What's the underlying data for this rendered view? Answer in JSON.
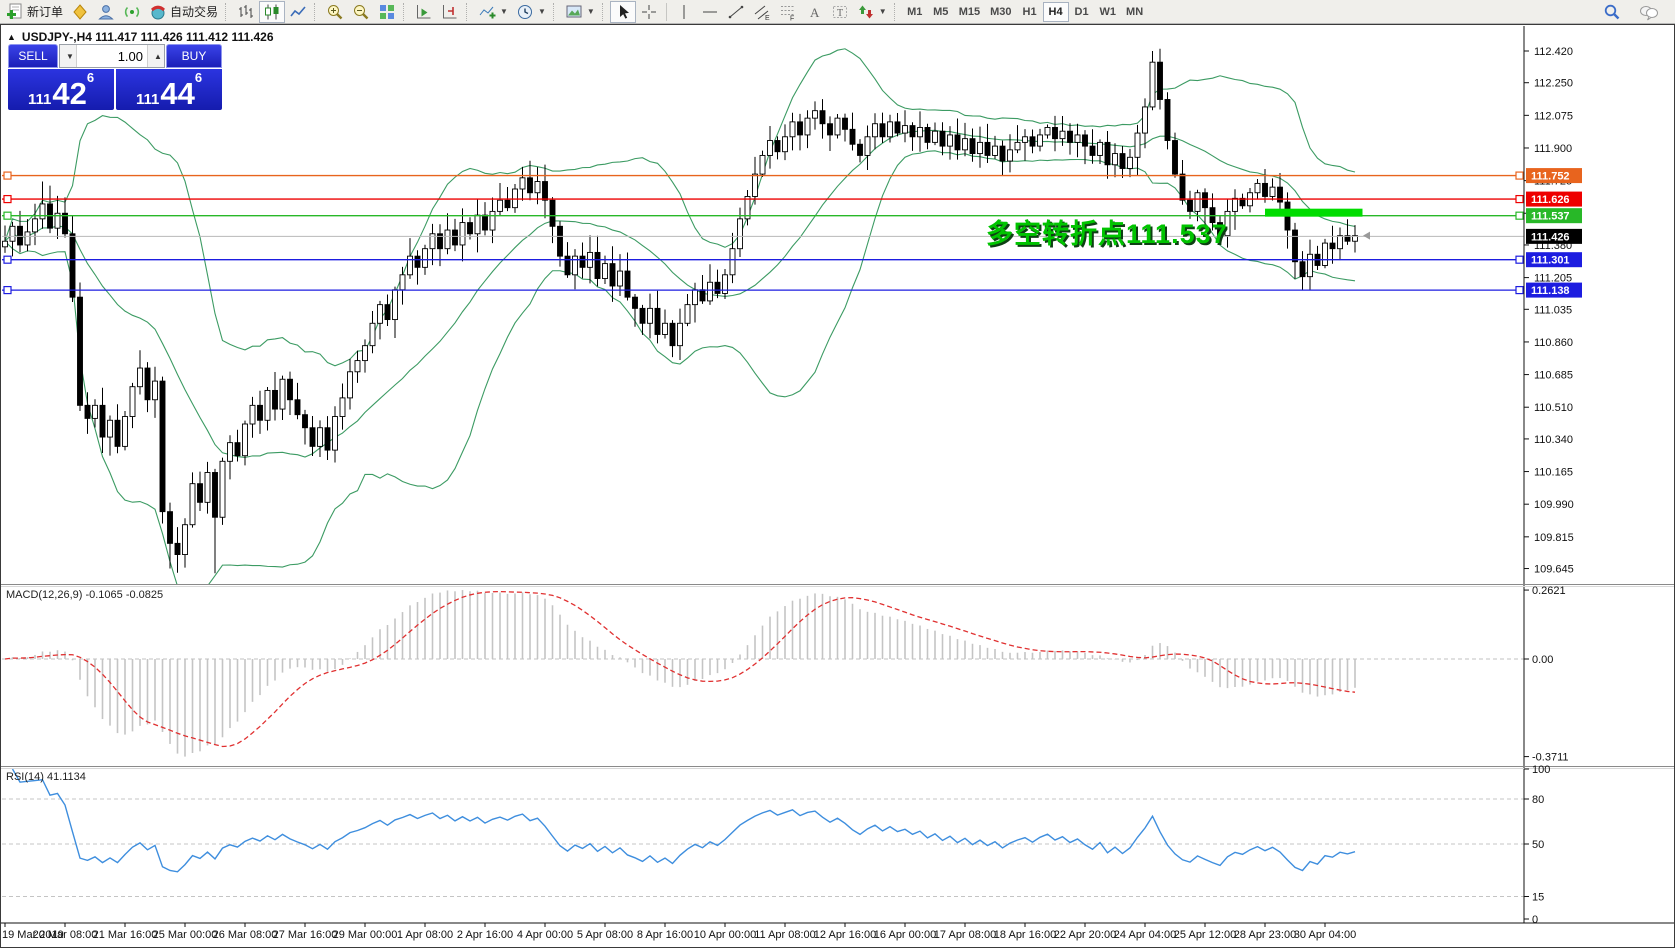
{
  "toolbar": {
    "new_order_label": "新订单",
    "auto_trading_label": "自动交易",
    "timeframes": [
      "M1",
      "M5",
      "M15",
      "M30",
      "H1",
      "H4",
      "D1",
      "W1",
      "MN"
    ],
    "active_timeframe": "H4",
    "icons": [
      "new-order-icon",
      "quotes-icon",
      "profile-icon",
      "signals-icon",
      "auto-trading-icon",
      "bar-chart-icon",
      "candlestick-icon",
      "line-chart-icon",
      "zoom-in-icon",
      "zoom-out-icon",
      "tile-windows-icon",
      "auto-scroll-icon",
      "chart-shift-icon",
      "indicators-icon",
      "periods-icon",
      "templates-icon",
      "cursor-icon",
      "crosshair-icon",
      "vertical-line-icon",
      "horizontal-line-icon",
      "trendline-icon",
      "channel-icon",
      "fibonacci-icon",
      "text-icon",
      "label-icon",
      "arrows-icon",
      "search-icon",
      "chat-icon"
    ]
  },
  "chart": {
    "symbol_info": "USDJPY-,H4  111.417 111.426 111.412 111.426",
    "annotation": "多空转折点111.537",
    "macd_label": "MACD(12,26,9) -0.1065 -0.0825",
    "rsi_label": "RSI(14) 41.1134"
  },
  "trade_panel": {
    "sell_label": "SELL",
    "buy_label": "BUY",
    "volume": "1.00",
    "prices": {
      "sell": {
        "prefix": "111",
        "big": "42",
        "sup": "6"
      },
      "buy": {
        "prefix": "111",
        "big": "44",
        "sup": "6"
      }
    }
  },
  "chart_data": {
    "type": "candlestick+indicators",
    "symbol": "USDJPY-",
    "timeframe": "H4",
    "current_quote": {
      "open": 111.417,
      "high": 111.426,
      "low": 111.412,
      "close": 111.426
    },
    "bid": 111.426,
    "ask": 111.446,
    "price_axis_ticks": [
      "112.420",
      "112.250",
      "112.075",
      "111.900",
      "111.725",
      "111.550",
      "111.380",
      "111.205",
      "111.035",
      "110.860",
      "110.685",
      "110.510",
      "110.340",
      "110.165",
      "109.990",
      "109.815",
      "109.645"
    ],
    "time_axis_labels": [
      "19 Mar 2019",
      "20 Mar 08:00",
      "21 Mar 16:00",
      "25 Mar 00:00",
      "26 Mar 08:00",
      "27 Mar 16:00",
      "29 Mar 00:00",
      "1 Apr 08:00",
      "2 Apr 16:00",
      "4 Apr 00:00",
      "5 Apr 08:00",
      "8 Apr 16:00",
      "10 Apr 00:00",
      "11 Apr 08:00",
      "12 Apr 16:00",
      "16 Apr 00:00",
      "17 Apr 08:00",
      "18 Apr 16:00",
      "22 Apr 20:00",
      "24 Apr 04:00",
      "25 Apr 12:00",
      "28 Apr 23:00",
      "30 Apr 04:00"
    ],
    "candles_per_time_label": 8,
    "closes": [
      111.4,
      111.48,
      111.38,
      111.45,
      111.52,
      111.6,
      111.47,
      111.55,
      111.44,
      111.1,
      110.52,
      110.45,
      110.52,
      110.35,
      110.44,
      110.3,
      110.46,
      110.62,
      110.72,
      110.55,
      110.65,
      109.95,
      109.78,
      109.72,
      109.88,
      110.1,
      110.0,
      110.16,
      109.92,
      110.22,
      110.32,
      110.25,
      110.42,
      110.52,
      110.44,
      110.6,
      110.5,
      110.66,
      110.55,
      110.47,
      110.4,
      110.3,
      110.4,
      110.28,
      110.46,
      110.56,
      110.7,
      110.76,
      110.84,
      110.96,
      111.06,
      110.98,
      111.14,
      111.22,
      111.32,
      111.26,
      111.36,
      111.44,
      111.36,
      111.46,
      111.38,
      111.5,
      111.44,
      111.54,
      111.46,
      111.56,
      111.62,
      111.58,
      111.68,
      111.74,
      111.66,
      111.72,
      111.62,
      111.48,
      111.32,
      111.22,
      111.32,
      111.26,
      111.34,
      111.2,
      111.28,
      111.16,
      111.24,
      111.1,
      111.04,
      110.96,
      111.04,
      110.9,
      110.96,
      110.84,
      110.96,
      111.06,
      111.14,
      111.08,
      111.18,
      111.12,
      111.22,
      111.36,
      111.52,
      111.64,
      111.76,
      111.86,
      111.94,
      111.88,
      111.96,
      112.04,
      111.97,
      112.06,
      112.1,
      112.03,
      111.97,
      112.06,
      112.0,
      111.92,
      111.86,
      111.96,
      112.03,
      111.96,
      112.04,
      111.98,
      112.02,
      111.96,
      112.01,
      111.93,
      111.99,
      111.91,
      111.97,
      111.89,
      111.95,
      111.87,
      111.93,
      111.86,
      111.91,
      111.83,
      111.89,
      111.93,
      111.96,
      111.91,
      111.97,
      112.01,
      111.95,
      111.99,
      111.93,
      111.97,
      111.91,
      111.86,
      111.93,
      111.81,
      111.87,
      111.79,
      111.85,
      111.98,
      112.12,
      112.36,
      112.16,
      111.94,
      111.76,
      111.62,
      111.56,
      111.66,
      111.58,
      111.5,
      111.43,
      111.56,
      111.63,
      111.59,
      111.66,
      111.71,
      111.64,
      111.69,
      111.61,
      111.46,
      111.29,
      111.21,
      111.33,
      111.27,
      111.39,
      111.36,
      111.43,
      111.4,
      111.43
    ],
    "wick_overrides": {
      "5": {
        "h": 111.72
      },
      "22": {
        "l": 109.645
      },
      "28": {
        "l": 109.62
      },
      "108": {
        "h": 112.15
      },
      "153": {
        "h": 112.42
      }
    },
    "hlines": [
      {
        "price": 111.752,
        "label": "111.752",
        "color": "#e8641e",
        "marker": true
      },
      {
        "price": 111.626,
        "label": "111.626",
        "color": "#ee0000",
        "marker": true
      },
      {
        "price": 111.537,
        "label": "111.537",
        "color": "#28b828",
        "marker": true
      },
      {
        "price": 111.426,
        "label": "111.426",
        "color": "#b8b8b8",
        "label_bg": "#000000",
        "marker": false
      },
      {
        "price": 111.301,
        "label": "111.301",
        "color": "#1d1de0",
        "marker": true
      },
      {
        "price": 111.138,
        "label": "111.138",
        "color": "#1d1de0",
        "marker": true
      }
    ],
    "highlight_bar": {
      "price": 111.537,
      "from_index": 168,
      "to_index": 181,
      "color": "#00dc00"
    },
    "bollinger": {
      "period": 20,
      "deviation": 2,
      "color": "#3c9b63"
    },
    "macd": {
      "fast": 12,
      "slow": 26,
      "signal": 9,
      "current": -0.1065,
      "signal_current": -0.0825,
      "axis_ticks": [
        "0.2621",
        "0.00",
        "-0.3711"
      ],
      "range": [
        -0.3711,
        0.2621
      ],
      "histogram_color": "#c4c4c4",
      "signal_color": "#e03030"
    },
    "rsi": {
      "period": 14,
      "current": 41.1134,
      "levels": [
        80,
        50,
        15
      ],
      "axis_ticks": [
        "100",
        "80",
        "50",
        "15",
        "0"
      ],
      "range": [
        0,
        100
      ],
      "color": "#3e8ede"
    }
  }
}
